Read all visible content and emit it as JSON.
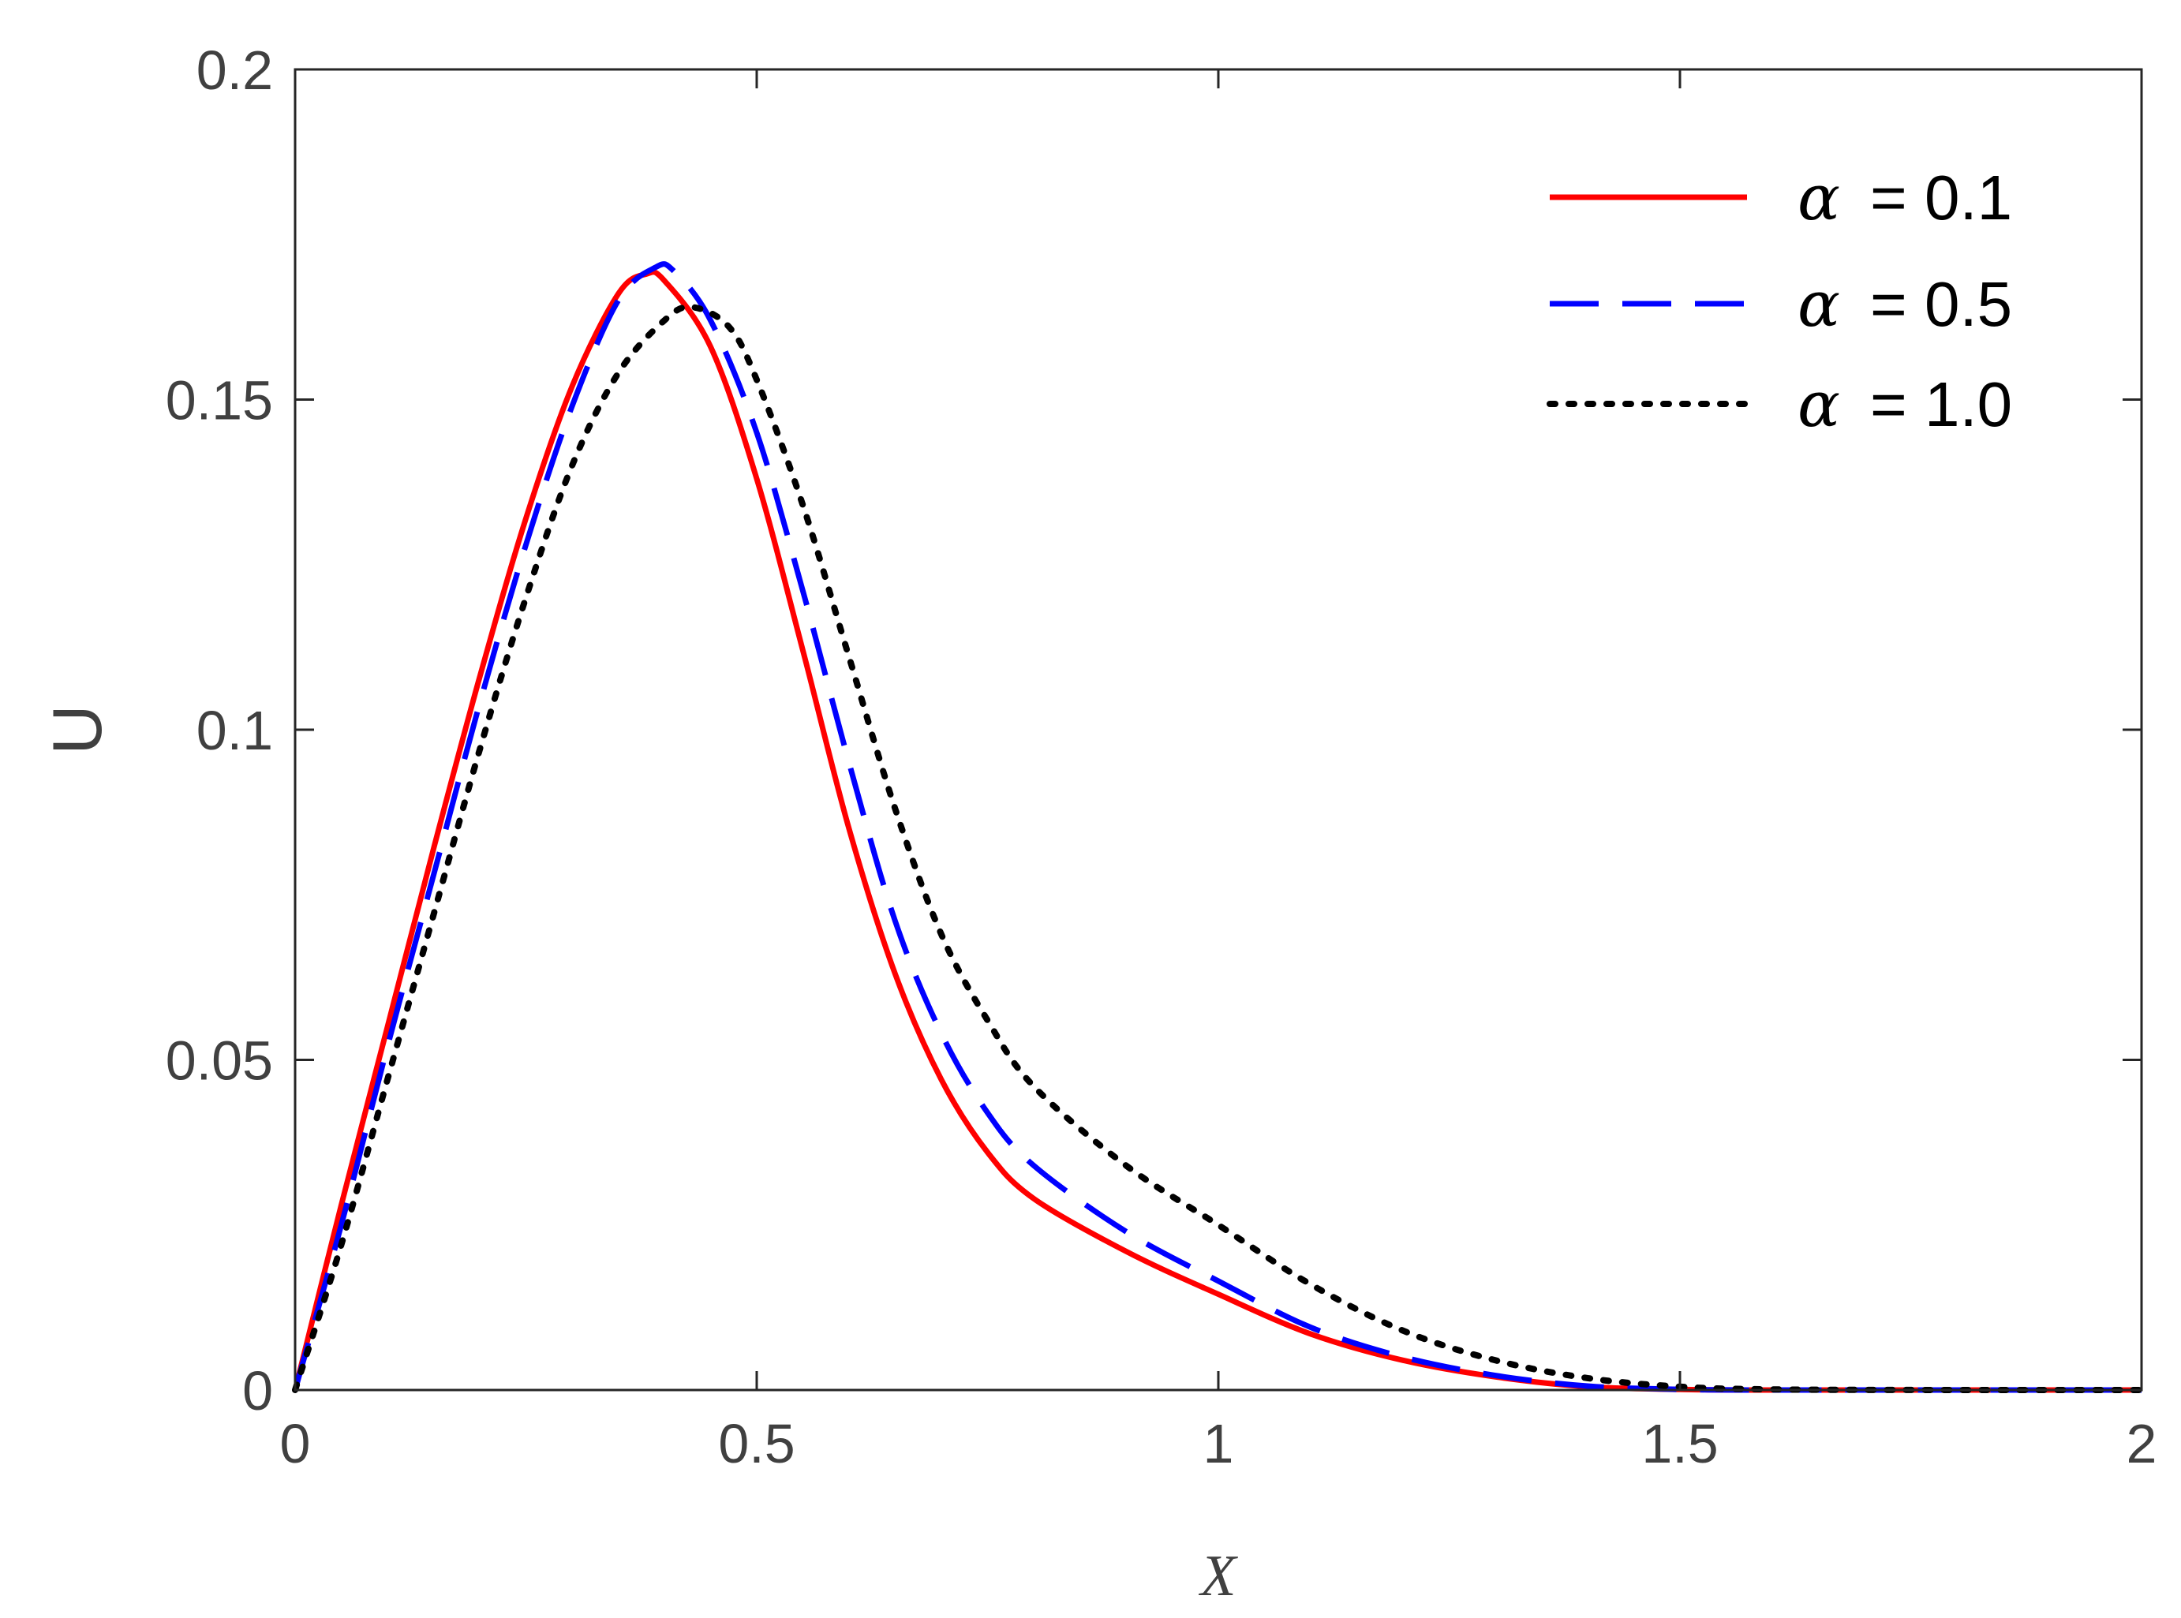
{
  "chart_data": {
    "type": "line",
    "xlabel": "X",
    "ylabel": "U",
    "xlim": [
      0,
      2
    ],
    "ylim": [
      0,
      0.2
    ],
    "xticks": [
      0,
      0.5,
      1,
      1.5,
      2
    ],
    "xtick_labels": [
      "0",
      "0.5",
      "1",
      "1.5",
      "2"
    ],
    "yticks": [
      0,
      0.05,
      0.1,
      0.15,
      0.2
    ],
    "ytick_labels": [
      "0",
      "0.05",
      "0.1",
      "0.15",
      "0.2"
    ],
    "grid": false,
    "legend_position": "top-right",
    "series": [
      {
        "name": "α = 0.1",
        "symbol": "α",
        "value_text": "= 0.1",
        "color": "#ff0000",
        "style": "solid",
        "x": [
          0,
          0.05,
          0.1,
          0.15,
          0.2,
          0.25,
          0.3,
          0.35,
          0.38,
          0.4,
          0.45,
          0.5,
          0.55,
          0.6,
          0.65,
          0.7,
          0.75,
          0.8,
          0.9,
          1.0,
          1.1,
          1.2,
          1.3,
          1.4,
          1.5,
          1.6,
          1.8,
          2.0
        ],
        "y": [
          0,
          0.028,
          0.055,
          0.082,
          0.108,
          0.132,
          0.152,
          0.166,
          0.169,
          0.168,
          0.158,
          0.138,
          0.112,
          0.085,
          0.063,
          0.047,
          0.036,
          0.029,
          0.021,
          0.0145,
          0.0085,
          0.0045,
          0.002,
          0.0005,
          0.0001,
          0,
          0,
          0
        ]
      },
      {
        "name": "α = 0.5",
        "symbol": "α",
        "value_text": "= 0.5",
        "color": "#0000ff",
        "style": "dashed",
        "x": [
          0,
          0.05,
          0.1,
          0.15,
          0.2,
          0.25,
          0.3,
          0.35,
          0.39,
          0.41,
          0.45,
          0.5,
          0.55,
          0.6,
          0.65,
          0.7,
          0.75,
          0.8,
          0.9,
          1.0,
          1.1,
          1.2,
          1.3,
          1.4,
          1.5,
          1.6,
          1.8,
          2.0
        ],
        "y": [
          0,
          0.025,
          0.052,
          0.078,
          0.104,
          0.128,
          0.149,
          0.165,
          0.17,
          0.1695,
          0.162,
          0.145,
          0.121,
          0.095,
          0.071,
          0.054,
          0.042,
          0.034,
          0.024,
          0.0165,
          0.0095,
          0.005,
          0.0022,
          0.0006,
          0.0001,
          0,
          0,
          0
        ]
      },
      {
        "name": "α = 1.0",
        "symbol": "α",
        "value_text": "= 1.0",
        "color": "#000000",
        "style": "dotted",
        "x": [
          0,
          0.05,
          0.1,
          0.15,
          0.2,
          0.25,
          0.3,
          0.35,
          0.4,
          0.43,
          0.47,
          0.5,
          0.55,
          0.6,
          0.65,
          0.7,
          0.75,
          0.8,
          0.9,
          1.0,
          1.1,
          1.2,
          1.3,
          1.4,
          1.5,
          1.6,
          1.8,
          2.0
        ],
        "y": [
          0,
          0.022,
          0.047,
          0.072,
          0.097,
          0.12,
          0.14,
          0.154,
          0.162,
          0.164,
          0.161,
          0.153,
          0.134,
          0.111,
          0.088,
          0.069,
          0.056,
          0.046,
          0.034,
          0.025,
          0.016,
          0.009,
          0.0045,
          0.0018,
          0.0005,
          0.0001,
          0,
          0
        ]
      }
    ]
  }
}
